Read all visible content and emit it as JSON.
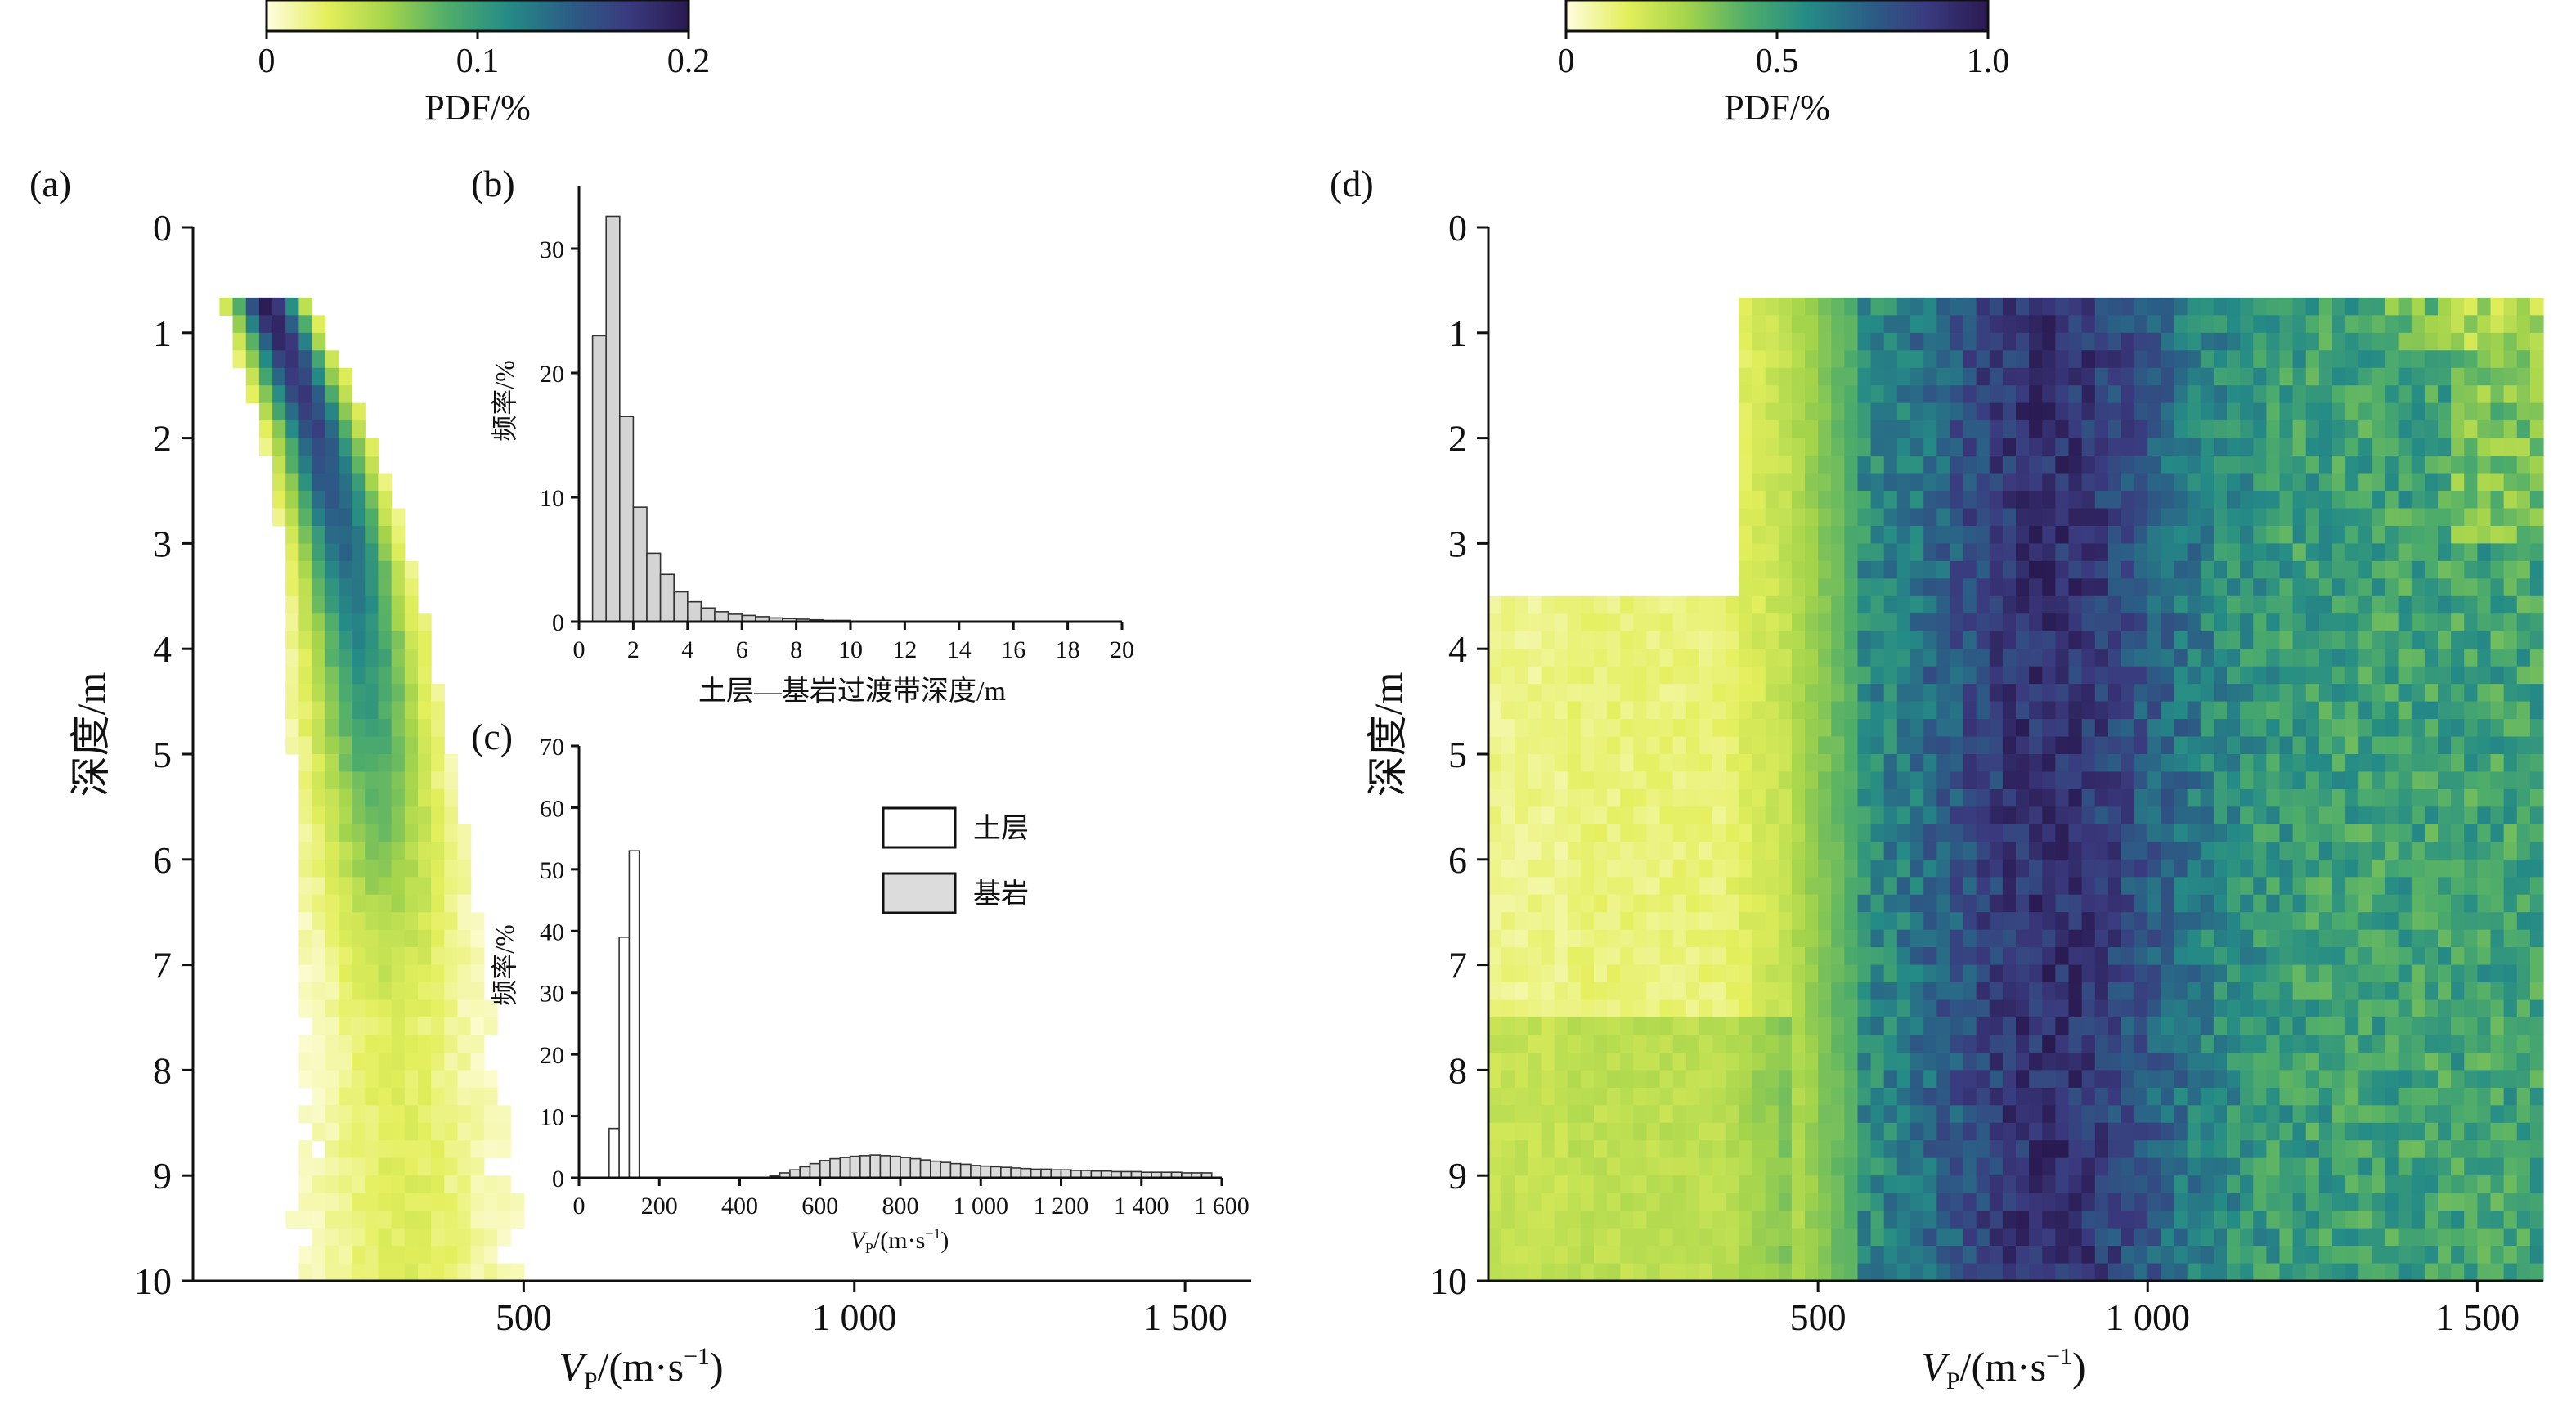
{
  "chart_data": [
    {
      "id": "a",
      "panel_label": "(a)",
      "type": "heatmap",
      "xlabel_main": "V",
      "xlabel_sub": "P",
      "xlabel_rest": "/(m·s",
      "xlabel_sup": "−1",
      "xlabel_end": ")",
      "ylabel": "深度/m",
      "xlim": [
        0,
        1600
      ],
      "ylim": [
        0,
        10
      ],
      "xticks": [
        500,
        1000,
        1500
      ],
      "xtick_labels": [
        "500",
        "1 000",
        "1 500"
      ],
      "yticks": [
        0,
        1,
        2,
        3,
        4,
        5,
        6,
        7,
        8,
        9,
        10
      ],
      "yticks_labels": [
        "0",
        "1",
        "2",
        "3",
        "4",
        "5",
        "6",
        "7",
        "8",
        "9",
        "10"
      ],
      "colorbar": {
        "label": "PDF/%",
        "range": [
          0,
          0.2
        ],
        "ticks": [
          "0",
          "0.1",
          "0.2"
        ]
      },
      "colormap": [
        "#fffde0",
        "#e4ef5c",
        "#a4d44c",
        "#4fad6a",
        "#258b86",
        "#2b5f86",
        "#3a3a7e",
        "#2a1a52"
      ],
      "trend": [
        [
          0.7,
          110
        ],
        [
          1.0,
          130
        ],
        [
          2.0,
          190
        ],
        [
          3.0,
          230
        ],
        [
          4.0,
          255
        ],
        [
          5.0,
          270
        ],
        [
          6.0,
          285
        ],
        [
          7.0,
          300
        ],
        [
          8.0,
          310
        ],
        [
          9.0,
          320
        ],
        [
          10.0,
          325
        ]
      ]
    },
    {
      "id": "b",
      "panel_label": "(b)",
      "type": "bar",
      "xlabel": "土层—基岩过渡带深度/m",
      "ylabel": "频率/%",
      "xlim": [
        0,
        20
      ],
      "ylim": [
        0,
        35
      ],
      "xticks": [
        "0",
        "2",
        "4",
        "6",
        "8",
        "10",
        "12",
        "14",
        "16",
        "18",
        "20"
      ],
      "yticks": [
        "0",
        "10",
        "20",
        "30"
      ],
      "bin_width": 0.5,
      "bins_start": [
        0.5,
        1.0,
        1.5,
        2.0,
        2.5,
        3.0,
        3.5,
        4.0,
        4.5,
        5.0,
        5.5,
        6.0,
        6.5,
        7.0,
        7.5,
        8.0,
        8.5,
        9.0,
        9.5
      ],
      "values": [
        23,
        32.6,
        16.5,
        9.2,
        5.5,
        3.8,
        2.4,
        1.6,
        1.1,
        0.8,
        0.6,
        0.5,
        0.4,
        0.3,
        0.25,
        0.2,
        0.15,
        0.1,
        0.1
      ]
    },
    {
      "id": "c",
      "panel_label": "(c)",
      "type": "bar",
      "xlabel_main": "V",
      "xlabel_sub": "P",
      "xlabel_rest": "/(m·s",
      "xlabel_sup": "−1",
      "xlabel_end": ")",
      "ylabel": "频率/%",
      "xlim": [
        0,
        1600
      ],
      "ylim": [
        0,
        70
      ],
      "xticks": [
        "0",
        "200",
        "400",
        "600",
        "800",
        "1 000",
        "1 200",
        "1 400",
        "1 600"
      ],
      "yticks": [
        "0",
        "10",
        "20",
        "30",
        "40",
        "50",
        "60",
        "70"
      ],
      "legend": {
        "position": "center-right",
        "entries": [
          "土层",
          "基岩"
        ]
      },
      "series": [
        {
          "name": "土层",
          "color": "#ffffff",
          "bin_width": 25,
          "x": [
            75,
            100,
            125
          ],
          "values": [
            8,
            39,
            53
          ]
        },
        {
          "name": "基岩",
          "color": "#dcdcdc",
          "bin_width": 25,
          "x": [
            475,
            500,
            525,
            550,
            575,
            600,
            625,
            650,
            675,
            700,
            725,
            750,
            775,
            800,
            825,
            850,
            875,
            900,
            925,
            950,
            975,
            1000,
            1025,
            1050,
            1075,
            1100,
            1125,
            1150,
            1175,
            1200,
            1225,
            1250,
            1275,
            1300,
            1325,
            1350,
            1375,
            1400,
            1425,
            1450,
            1475,
            1500,
            1525,
            1550
          ],
          "values": [
            0.3,
            0.8,
            1.3,
            1.8,
            2.3,
            2.8,
            3.1,
            3.3,
            3.5,
            3.6,
            3.7,
            3.6,
            3.5,
            3.3,
            3.1,
            2.9,
            2.7,
            2.5,
            2.3,
            2.2,
            2.0,
            1.9,
            1.8,
            1.7,
            1.6,
            1.5,
            1.4,
            1.4,
            1.3,
            1.3,
            1.2,
            1.2,
            1.1,
            1.1,
            1.0,
            1.0,
            1.0,
            0.9,
            0.9,
            0.9,
            0.9,
            0.8,
            0.8,
            0.8
          ]
        }
      ]
    },
    {
      "id": "d",
      "panel_label": "(d)",
      "type": "heatmap",
      "xlabel_main": "V",
      "xlabel_sub": "P",
      "xlabel_rest": "/(m·s",
      "xlabel_sup": "−1",
      "xlabel_end": ")",
      "ylabel": "深度/m",
      "xlim": [
        0,
        1600
      ],
      "ylim": [
        0,
        10
      ],
      "xticks": [
        500,
        1000,
        1500
      ],
      "xtick_labels": [
        "500",
        "1 000",
        "1 500"
      ],
      "yticks": [
        0,
        1,
        2,
        3,
        4,
        5,
        6,
        7,
        8,
        9,
        10
      ],
      "yticks_labels": [
        "0",
        "1",
        "2",
        "3",
        "4",
        "5",
        "6",
        "7",
        "8",
        "9",
        "10"
      ],
      "colorbar": {
        "label": "PDF/%",
        "range": [
          0,
          1.0
        ],
        "ticks": [
          "0",
          "0.5",
          "1.0"
        ]
      },
      "colormap": [
        "#fffde0",
        "#e4ef5c",
        "#a4d44c",
        "#4fad6a",
        "#258b86",
        "#2b5f86",
        "#3a3a7e",
        "#2a1a52"
      ],
      "peak_velocity": 850
    }
  ]
}
